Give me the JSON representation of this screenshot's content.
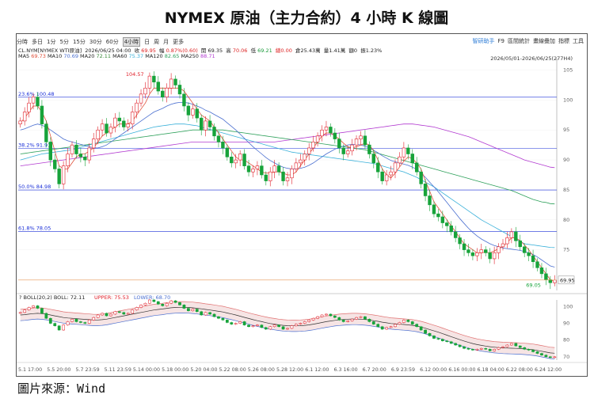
{
  "title": "NYMEX 原油（主力合約）4 小時 K 線圖",
  "source": "圖片來源：Wind",
  "toolbar": {
    "periods": [
      "分時",
      "多日",
      "1分",
      "5分",
      "15分",
      "30分",
      "60分",
      "4小時",
      "日",
      "周",
      "月",
      "更多"
    ],
    "active": "4小時",
    "right_tools": [
      {
        "label": "智研助手",
        "accent": true
      },
      {
        "label": "F9",
        "accent": false
      },
      {
        "label": "區間統計",
        "accent": false
      },
      {
        "label": "畫線疊加",
        "accent": false
      },
      {
        "label": "指標",
        "accent": false
      },
      {
        "label": "工具",
        "accent": false
      }
    ]
  },
  "info": {
    "line1": {
      "symbol": "CL.NYM[NYMEX WTI原油]",
      "time": "2026/06/25 04:00",
      "close_label": "收",
      "close": "69.95",
      "change_label": "幅",
      "change": "0.87%(0.60)",
      "high_label": "高",
      "high": "70.06",
      "low_label": "低",
      "low": "69.21",
      "open_label": "開",
      "open": "69.35",
      "misc1": "總0.00",
      "misc2": "倉25.43萬",
      "misc3": "量1.41萬",
      "misc4": "額0",
      "misc5": "振1.23%"
    },
    "ma": [
      {
        "label": "MA5",
        "value": "69.73"
      },
      {
        "label": "MA10",
        "value": "70.69"
      },
      {
        "label": "MA20",
        "value": "72.11"
      },
      {
        "label": "MA60",
        "value": "75.37"
      },
      {
        "label": "MA120",
        "value": "82.65"
      },
      {
        "label": "MA250",
        "value": "88.71"
      }
    ],
    "range": "2026/05/01-2026/06/25(277H4)"
  },
  "boll_info": {
    "name": "BOLL(20,2)",
    "boll_label": "BOLL",
    "boll": "72.11",
    "upper_label": "UPPER",
    "upper": "75.53",
    "lower_label": "LOWER",
    "lower": "68.70"
  },
  "colors": {
    "up": "#e0202a",
    "down": "#17a33a",
    "ma5": "#e0503a",
    "ma10": "#4a6fd0",
    "ma20": "#3a8a3a",
    "ma60": "#39b0d9",
    "ma120": "#2da05a",
    "ma250": "#b23ad0",
    "fib": "#1a2fd8",
    "price_line": "#f0a060"
  },
  "chart_data": {
    "type": "candlestick",
    "ylim": [
      69,
      106
    ],
    "ytick_values": [
      70,
      75,
      80,
      85,
      90,
      95,
      100,
      105
    ],
    "ytick_labels": [
      "70",
      "75",
      "80",
      "85",
      "90",
      "95",
      "100",
      "105"
    ],
    "xtick_labels": [
      "5.1 17:00",
      "5.5 20:00",
      "5.7 23:59",
      "5.11 23:59",
      "5.14 00:00",
      "5.18 00:00",
      "5.20 04:00",
      "5.22 08:00",
      "5.26 08:00",
      "5.28 12:00",
      "6.1 12:00",
      "6.3 16:00",
      "6.7 20:00",
      "6.9 23:59",
      "6.12 00:00",
      "6.16 00:00",
      "6.18 04:00",
      "6.22 08:00",
      "6.24 12:00"
    ],
    "fib_levels": [
      {
        "label": "23.6%",
        "value": 100.48
      },
      {
        "label": "38.2%",
        "value": 91.91
      },
      {
        "label": "50.0%",
        "value": 84.98
      },
      {
        "label": "61.8%",
        "value": 78.05
      }
    ],
    "annotations": {
      "high": "104.57",
      "low": "69.05",
      "last": "69.95"
    },
    "close": [
      96.5,
      98.0,
      99.5,
      100.5,
      99.0,
      96.0,
      93.0,
      90.0,
      88.5,
      86.0,
      89.0,
      91.0,
      92.5,
      91.0,
      90.5,
      90.0,
      92.0,
      93.5,
      95.0,
      96.0,
      94.5,
      95.5,
      97.0,
      96.5,
      95.5,
      96.0,
      98.0,
      99.5,
      101.0,
      102.0,
      104.0,
      103.0,
      101.5,
      100.5,
      102.0,
      103.5,
      102.5,
      101.0,
      99.0,
      97.5,
      98.5,
      97.0,
      95.0,
      96.5,
      95.5,
      94.0,
      93.0,
      92.0,
      90.5,
      89.5,
      90.0,
      91.0,
      89.0,
      88.0,
      88.5,
      89.0,
      87.5,
      86.5,
      88.0,
      89.0,
      88.0,
      86.5,
      87.0,
      88.5,
      89.5,
      90.0,
      91.0,
      92.0,
      93.0,
      94.0,
      95.0,
      95.5,
      94.5,
      93.5,
      92.0,
      91.0,
      91.5,
      92.5,
      93.5,
      94.0,
      92.5,
      91.0,
      89.5,
      88.0,
      86.5,
      87.5,
      88.0,
      89.5,
      90.5,
      92.0,
      91.0,
      89.5,
      88.0,
      86.0,
      84.0,
      82.5,
      81.0,
      80.5,
      79.5,
      79.0,
      78.0,
      77.0,
      76.0,
      75.0,
      74.5,
      74.0,
      74.5,
      75.0,
      74.5,
      73.5,
      74.5,
      75.5,
      76.0,
      77.0,
      78.0,
      76.5,
      75.5,
      74.5,
      74.0,
      73.0,
      72.0,
      71.0,
      70.0,
      69.5,
      69.95
    ],
    "ma5": [
      96.2,
      97.0,
      98.0,
      99.0,
      99.0,
      98.0,
      96.5,
      94.0,
      91.5,
      89.0,
      88.5,
      88.5,
      89.5,
      90.5,
      91.0,
      91.0,
      91.5,
      92.0,
      93.0,
      94.0,
      94.5,
      95.0,
      95.5,
      96.0,
      96.0,
      96.0,
      96.5,
      97.5,
      98.5,
      99.5,
      101.0,
      102.0,
      102.0,
      102.0,
      102.0,
      102.0,
      102.0,
      102.0,
      101.5,
      100.5,
      99.5,
      98.5,
      97.5,
      97.0,
      96.5,
      95.5,
      94.5,
      93.5,
      92.5,
      91.5,
      90.5,
      90.0,
      90.0,
      89.5,
      89.0,
      88.5,
      88.0,
      87.8,
      87.8,
      88.0,
      88.0,
      87.8,
      87.5,
      87.5,
      88.0,
      89.0,
      90.0,
      91.0,
      92.0,
      93.0,
      94.0,
      94.5,
      94.5,
      94.0,
      93.5,
      92.8,
      92.2,
      92.0,
      92.2,
      92.5,
      92.8,
      92.5,
      91.5,
      90.0,
      88.5,
      87.5,
      87.0,
      87.8,
      88.8,
      89.8,
      90.5,
      90.2,
      89.5,
      88.5,
      86.5,
      84.8,
      83.0,
      82.0,
      81.0,
      80.0,
      79.0,
      78.0,
      77.0,
      76.0,
      75.5,
      75.0,
      74.5,
      74.5,
      74.6,
      74.5,
      74.8,
      75.2,
      75.5,
      76.2,
      77.0,
      77.0,
      76.5,
      75.8,
      75.0,
      74.0,
      73.0,
      72.0,
      71.0,
      70.0,
      69.7
    ],
    "ma20": [
      95.0,
      95.2,
      95.5,
      95.8,
      96.0,
      95.8,
      95.5,
      95.0,
      94.5,
      94.0,
      93.5,
      93.2,
      93.0,
      92.8,
      92.6,
      92.4,
      92.2,
      92.0,
      92.0,
      92.2,
      92.5,
      93.0,
      93.5,
      94.0,
      94.5,
      95.0,
      95.5,
      96.0,
      96.5,
      97.0,
      97.5,
      98.0,
      98.3,
      98.6,
      99.0,
      99.3,
      99.5,
      99.6,
      99.6,
      99.5,
      99.3,
      99.0,
      98.7,
      98.3,
      98.0,
      97.6,
      97.2,
      96.8,
      96.2,
      95.6,
      95.0,
      94.3,
      93.6,
      92.9,
      92.2,
      91.6,
      91.0,
      90.4,
      89.9,
      89.5,
      89.1,
      88.8,
      88.6,
      88.5,
      88.5,
      88.6,
      88.8,
      89.1,
      89.5,
      90.0,
      90.5,
      91.0,
      91.4,
      91.8,
      92.1,
      92.3,
      92.5,
      92.6,
      92.6,
      92.5,
      92.3,
      92.0,
      91.6,
      91.2,
      90.7,
      90.3,
      89.9,
      89.7,
      89.5,
      89.3,
      89.1,
      88.8,
      88.4,
      87.8,
      87.1,
      86.3,
      85.5,
      84.7,
      83.8,
      82.9,
      82.0,
      81.1,
      80.2,
      79.4,
      78.6,
      77.9,
      77.3,
      76.8,
      76.4,
      76.0,
      75.7,
      75.5,
      75.3,
      75.2,
      75.1,
      75.0,
      74.9,
      74.7,
      74.5,
      74.2,
      73.8,
      73.3,
      72.8,
      72.3,
      72.11
    ],
    "ma60": [
      90.0,
      90.2,
      90.4,
      90.6,
      90.8,
      91.0,
      91.1,
      91.2,
      91.3,
      91.4,
      91.5,
      91.6,
      91.7,
      91.9,
      92.1,
      92.3,
      92.5,
      92.7,
      92.9,
      93.1,
      93.3,
      93.5,
      93.7,
      93.9,
      94.1,
      94.3,
      94.5,
      94.7,
      94.9,
      95.1,
      95.3,
      95.5,
      95.6,
      95.7,
      95.8,
      95.9,
      96.0,
      96.0,
      96.0,
      95.9,
      95.8,
      95.7,
      95.5,
      95.3,
      95.1,
      94.9,
      94.7,
      94.5,
      94.3,
      94.1,
      93.9,
      93.7,
      93.5,
      93.3,
      93.1,
      92.9,
      92.7,
      92.5,
      92.3,
      92.1,
      91.9,
      91.7,
      91.5,
      91.3,
      91.2,
      91.1,
      91.0,
      90.9,
      90.8,
      90.7,
      90.6,
      90.5,
      90.4,
      90.3,
      90.2,
      90.1,
      90.0,
      89.9,
      89.8,
      89.7,
      89.6,
      89.5,
      89.4,
      89.2,
      89.0,
      88.8,
      88.6,
      88.4,
      88.2,
      88.0,
      87.7,
      87.4,
      87.1,
      86.7,
      86.3,
      85.9,
      85.5,
      85.0,
      84.5,
      84.0,
      83.5,
      83.0,
      82.5,
      82.0,
      81.5,
      81.0,
      80.5,
      80.0,
      79.6,
      79.2,
      78.8,
      78.4,
      78.0,
      77.6,
      77.2,
      76.8,
      76.4,
      76.0,
      75.9,
      75.8,
      75.7,
      75.6,
      75.5,
      75.4,
      75.37
    ],
    "ma120": [
      91.0,
      91.1,
      91.2,
      91.3,
      91.4,
      91.5,
      91.6,
      91.7,
      91.8,
      91.9,
      92.0,
      92.1,
      92.2,
      92.3,
      92.4,
      92.5,
      92.6,
      92.7,
      92.8,
      92.9,
      93.0,
      93.1,
      93.2,
      93.3,
      93.4,
      93.5,
      93.6,
      93.7,
      93.8,
      93.9,
      94.0,
      94.1,
      94.2,
      94.3,
      94.4,
      94.5,
      94.6,
      94.7,
      94.8,
      94.9,
      95.0,
      95.0,
      95.0,
      95.0,
      95.0,
      95.0,
      95.0,
      95.0,
      94.9,
      94.8,
      94.7,
      94.6,
      94.5,
      94.4,
      94.3,
      94.2,
      94.1,
      94.0,
      93.9,
      93.8,
      93.7,
      93.6,
      93.5,
      93.4,
      93.3,
      93.2,
      93.1,
      93.0,
      92.9,
      92.8,
      92.7,
      92.6,
      92.5,
      92.4,
      92.3,
      92.2,
      92.1,
      92.0,
      91.9,
      91.8,
      91.7,
      91.5,
      91.3,
      91.1,
      90.9,
      90.7,
      90.5,
      90.3,
      90.1,
      89.9,
      89.7,
      89.5,
      89.3,
      89.1,
      88.9,
      88.7,
      88.5,
      88.3,
      88.1,
      87.9,
      87.7,
      87.5,
      87.3,
      87.1,
      86.9,
      86.7,
      86.5,
      86.3,
      86.1,
      85.9,
      85.7,
      85.5,
      85.3,
      85.1,
      84.9,
      84.6,
      84.3,
      84.0,
      83.7,
      83.4,
      83.2,
      83.0,
      82.9,
      82.7,
      82.65
    ],
    "ma250": [
      89.0,
      89.1,
      89.2,
      89.3,
      89.4,
      89.5,
      89.6,
      89.7,
      89.8,
      89.9,
      90.0,
      90.1,
      90.2,
      90.3,
      90.4,
      90.5,
      90.6,
      90.7,
      90.8,
      90.9,
      91.0,
      91.1,
      91.2,
      91.3,
      91.4,
      91.5,
      91.6,
      91.7,
      91.8,
      91.9,
      92.0,
      92.1,
      92.2,
      92.3,
      92.4,
      92.5,
      92.6,
      92.7,
      92.8,
      92.9,
      93.0,
      93.0,
      93.0,
      93.0,
      93.0,
      93.0,
      93.0,
      93.0,
      93.0,
      93.0,
      93.0,
      93.0,
      93.0,
      93.0,
      93.0,
      93.0,
      93.0,
      93.0,
      93.0,
      93.0,
      93.1,
      93.2,
      93.3,
      93.4,
      93.5,
      93.6,
      93.7,
      93.8,
      93.9,
      94.0,
      94.1,
      94.2,
      94.3,
      94.4,
      94.5,
      94.6,
      94.7,
      94.8,
      94.9,
      95.0,
      95.1,
      95.2,
      95.3,
      95.4,
      95.5,
      95.6,
      95.7,
      95.8,
      95.9,
      96.0,
      96.0,
      96.0,
      95.9,
      95.8,
      95.7,
      95.6,
      95.5,
      95.3,
      95.1,
      94.9,
      94.7,
      94.5,
      94.3,
      94.1,
      93.9,
      93.6,
      93.3,
      93.0,
      92.7,
      92.4,
      92.1,
      91.8,
      91.5,
      91.2,
      90.9,
      90.6,
      90.3,
      90.0,
      89.8,
      89.6,
      89.4,
      89.2,
      89.0,
      88.8,
      88.71
    ],
    "boll_panel": {
      "ylim": [
        68,
        104
      ],
      "ytick_values": [
        70,
        80,
        90,
        100
      ],
      "ytick_labels": [
        "70",
        "80",
        "90",
        "100"
      ]
    }
  }
}
